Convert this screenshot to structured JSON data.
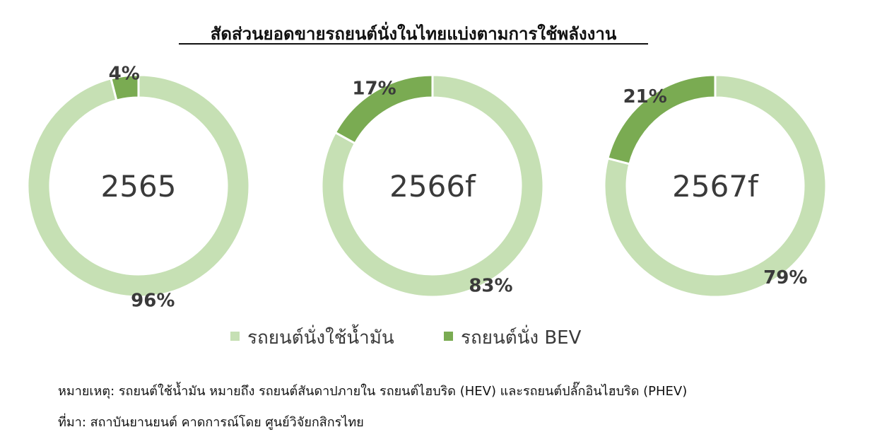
{
  "chart_data": {
    "type": "pie",
    "title": "สัดส่วนยอดขายรถยนต์นั่งในไทยแบ่งตามการใช้พลังงาน",
    "legend_position": "bottom",
    "series": [
      {
        "name": "รถยนต์นั่งใช้น้ำมัน",
        "color": "#c6e0b4"
      },
      {
        "name": "รถยนต์นั่ง BEV",
        "color": "#7aab52"
      }
    ],
    "charts": [
      {
        "label": "2565",
        "values": [
          96,
          4
        ],
        "value_labels": [
          "96%",
          "4%"
        ]
      },
      {
        "label": "2566f",
        "values": [
          83,
          17
        ],
        "value_labels": [
          "83%",
          "17%"
        ]
      },
      {
        "label": "2567f",
        "values": [
          79,
          21
        ],
        "value_labels": [
          "79%",
          "21%"
        ]
      }
    ]
  },
  "notes": {
    "remark": "หมายเหตุ: รถยนต์ใช้น้ำมัน หมายถึง รถยนต์สันดาปภายใน รถยนต์ไฮบริด (HEV) และรถยนต์ปลั๊กอินไฮบริด (PHEV)",
    "source": "ที่มา: สถาบันยานยนต์ คาดการณ์โดย ศูนย์วิจัยกสิกรไทย"
  }
}
